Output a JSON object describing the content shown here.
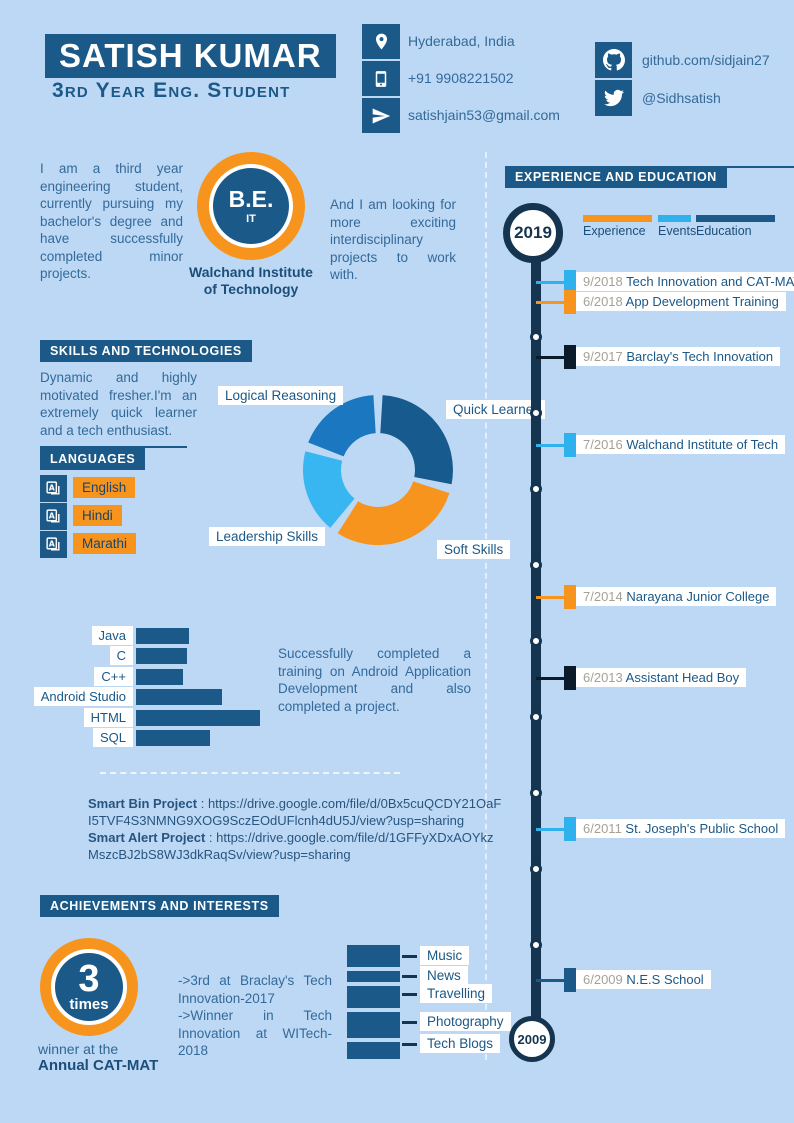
{
  "colors": {
    "background": "#BDD8F5",
    "primary_blue": "#1B5988",
    "deep_navy": "#15344F",
    "orange": "#F7941E",
    "light_blue": "#2FB1EE",
    "mid_blue": "#1B78C0",
    "marker_black": "#0C1B29",
    "text_blue": "#336A99",
    "date_gray": "#A7A195"
  },
  "header": {
    "name": "SATISH KUMAR",
    "subtitle": "3rd Year Eng. Student",
    "contacts": [
      {
        "icon": "location-pin-icon",
        "text": "Hyderabad, India"
      },
      {
        "icon": "mobile-phone-icon",
        "text": "+91 9908221502"
      },
      {
        "icon": "paper-plane-icon",
        "text": "satishjain53@gmail.com"
      }
    ],
    "social": [
      {
        "icon": "github-icon",
        "text": "github.com/sidjain27"
      },
      {
        "icon": "twitter-icon",
        "text": "@Sidhsatish"
      }
    ]
  },
  "about": {
    "left_text": "I am a third year engineering student, currently pursuing my bachelor's degree and have successfully completed minor projects.",
    "badge_degree": "B.E.",
    "badge_branch": "IT",
    "institute": "Walchand Institute of Technology",
    "right_text": "And I am looking for more exciting interdisciplinary projects to work with."
  },
  "skills_section": {
    "title": "SKILLS AND TECHNOLOGIES",
    "intro": "Dynamic and highly motivated fresher.I'm an extremely quick learner and a tech enthusiast.",
    "training_note": "Successfully completed a training on Android Application Development and also completed a project."
  },
  "languages": {
    "title": "LANGUAGES",
    "items": [
      "English",
      "Hindi",
      "Marathi"
    ]
  },
  "projects": [
    {
      "name": "Smart Bin Project",
      "url": "https://drive.google.com/file/d/0Bx5cuQCDY21OaFI5TVF4S3NMNG9XOG9SczEOdUFlcnh4dU5J/view?usp=sharing"
    },
    {
      "name": "Smart Alert Project",
      "url": "https://drive.google.com/file/d/1GFFyXDxAOYkzMszcBJ2bS8WJ3dkRaqSv/view?usp=sharing"
    }
  ],
  "achievements": {
    "title": "ACHIEVEMENTS AND INTERESTS",
    "badge_number": "3",
    "badge_unit": "times",
    "caption_line1": "winner at the",
    "caption_line2": "Annual CAT-MAT",
    "bullets": [
      "->3rd at Braclay's Tech Innovation-2017",
      "->Winner in Tech Innovation at WITech-2018"
    ]
  },
  "interests": {
    "items": [
      {
        "label": "Music",
        "size": 22
      },
      {
        "label": "News",
        "size": 11
      },
      {
        "label": "Travelling",
        "size": 22
      },
      {
        "label": "Photography",
        "size": 26
      },
      {
        "label": "Tech Blogs",
        "size": 17
      }
    ]
  },
  "timeline": {
    "title": "EXPERIENCE AND EDUCATION",
    "start_year": "2019",
    "end_year": "2009",
    "legend": [
      {
        "label": "Experience",
        "color": "#F7941E"
      },
      {
        "label": "Events",
        "color": "#2FB1EE"
      },
      {
        "label": "Education",
        "color": "#1B5988"
      }
    ],
    "entries": [
      {
        "date": "9/2018",
        "title": "Tech Innovation and CAT-MAT",
        "color": "#2FB1EE"
      },
      {
        "date": "6/2018",
        "title": "App Development Training",
        "color": "#F7941E"
      },
      {
        "date": "9/2017",
        "title": "Barclay's Tech Innovation",
        "color": "#0C1B29"
      },
      {
        "date": "7/2016",
        "title": "Walchand Institute of Tech",
        "color": "#2FB1EE"
      },
      {
        "date": "7/2014",
        "title": "Narayana Junior College",
        "color": "#F7941E"
      },
      {
        "date": "6/2013",
        "title": "Assistant Head Boy",
        "color": "#0C1B29"
      },
      {
        "date": "6/2011",
        "title": "St. Joseph's Public School",
        "color": "#2FB1EE"
      },
      {
        "date": "6/2009",
        "title": "N.E.S School",
        "color": "#1B5988"
      }
    ]
  },
  "chart_data": [
    {
      "type": "pie",
      "variant": "donut",
      "labels": [
        "Quick Learner",
        "Soft Skills",
        "Leadership Skills",
        "Logical Reasoning"
      ],
      "values": [
        29,
        31,
        20,
        20
      ],
      "colors": [
        "#175A8E",
        "#F7941E",
        "#38B6F2",
        "#1B78C0"
      ],
      "legend_position": "around-labels"
    },
    {
      "type": "bar",
      "orientation": "horizontal",
      "categories": [
        "Java",
        "C",
        "C++",
        "Android Studio",
        "HTML",
        "SQL"
      ],
      "values": [
        43,
        41,
        38,
        69,
        100,
        60
      ],
      "color": "#1B5988",
      "xlabel": "",
      "ylabel": ""
    }
  ]
}
